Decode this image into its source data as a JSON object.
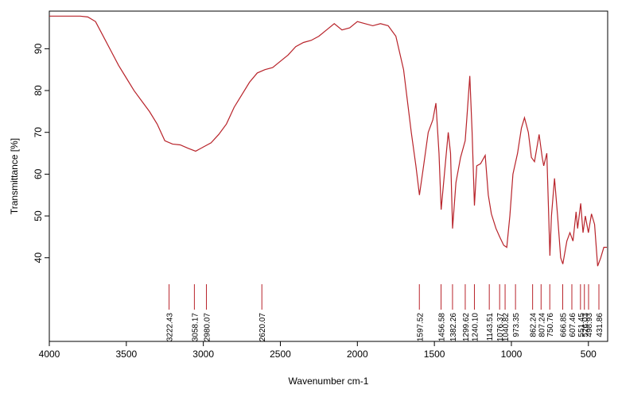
{
  "chart_data": {
    "type": "line",
    "xlabel": "Wavenumber cm-1",
    "ylabel": "Transmittance [%]",
    "color": "#b8232a",
    "xlim": [
      4000,
      375
    ],
    "ylim": [
      20,
      99
    ],
    "xticks": [
      4000,
      3500,
      3000,
      2500,
      2000,
      1500,
      1000,
      500
    ],
    "yticks": [
      40,
      50,
      60,
      70,
      80,
      90
    ],
    "x": [
      4000,
      3800,
      3750,
      3700,
      3650,
      3600,
      3550,
      3500,
      3450,
      3400,
      3350,
      3300,
      3250,
      3200,
      3150,
      3100,
      3050,
      3000,
      2950,
      2900,
      2850,
      2800,
      2750,
      2700,
      2650,
      2600,
      2550,
      2500,
      2450,
      2400,
      2350,
      2300,
      2250,
      2200,
      2150,
      2100,
      2050,
      2000,
      1950,
      1900,
      1850,
      1800,
      1750,
      1700,
      1650,
      1620,
      1597,
      1570,
      1540,
      1510,
      1490,
      1470,
      1456,
      1430,
      1410,
      1395,
      1382,
      1360,
      1330,
      1300,
      1290,
      1270,
      1255,
      1240,
      1225,
      1200,
      1170,
      1150,
      1130,
      1100,
      1076,
      1050,
      1030,
      1010,
      990,
      960,
      935,
      915,
      890,
      870,
      850,
      820,
      800,
      790,
      770,
      750,
      740,
      720,
      700,
      680,
      666,
      640,
      620,
      600,
      580,
      570,
      550,
      535,
      520,
      500,
      480,
      460,
      440,
      420,
      400,
      380
    ],
    "values": [
      97.8,
      97.8,
      97.6,
      96.5,
      93,
      89.5,
      86,
      83,
      80,
      77.5,
      75,
      72,
      68,
      67.2,
      67,
      66.2,
      65.5,
      66.5,
      67.5,
      69.5,
      72,
      76,
      79,
      82,
      84.2,
      85,
      85.5,
      87,
      88.5,
      90.5,
      91.5,
      92,
      93,
      94.5,
      96,
      94.5,
      95,
      96.5,
      96,
      95.5,
      96,
      95.5,
      93,
      85,
      70,
      62,
      55,
      62,
      70,
      73,
      77,
      65,
      51.5,
      62,
      70,
      65,
      47,
      58,
      64,
      68,
      73,
      83.5,
      70,
      52.5,
      62,
      62.5,
      64.5,
      55,
      50.5,
      47,
      45,
      43,
      42.5,
      50,
      60,
      65,
      71,
      73.5,
      70,
      64,
      63,
      69.5,
      64,
      62,
      65,
      40.5,
      50,
      59,
      50,
      40,
      38.5,
      44,
      46,
      44,
      51,
      47,
      53,
      46,
      50,
      46,
      50.5,
      48,
      38,
      40,
      42.5,
      42.5
    ],
    "peaks": [
      3222.43,
      3058.17,
      2980.07,
      2620.07,
      1597.52,
      1456.58,
      1382.26,
      1299.62,
      {
        "value": 1240.1,
        "label": "1240.10"
      },
      1143.51,
      1076.37,
      1040.82,
      973.35,
      862.24,
      807.24,
      750.76,
      666.85,
      607.46,
      551.45,
      526.03,
      498.93,
      431.86
    ]
  }
}
